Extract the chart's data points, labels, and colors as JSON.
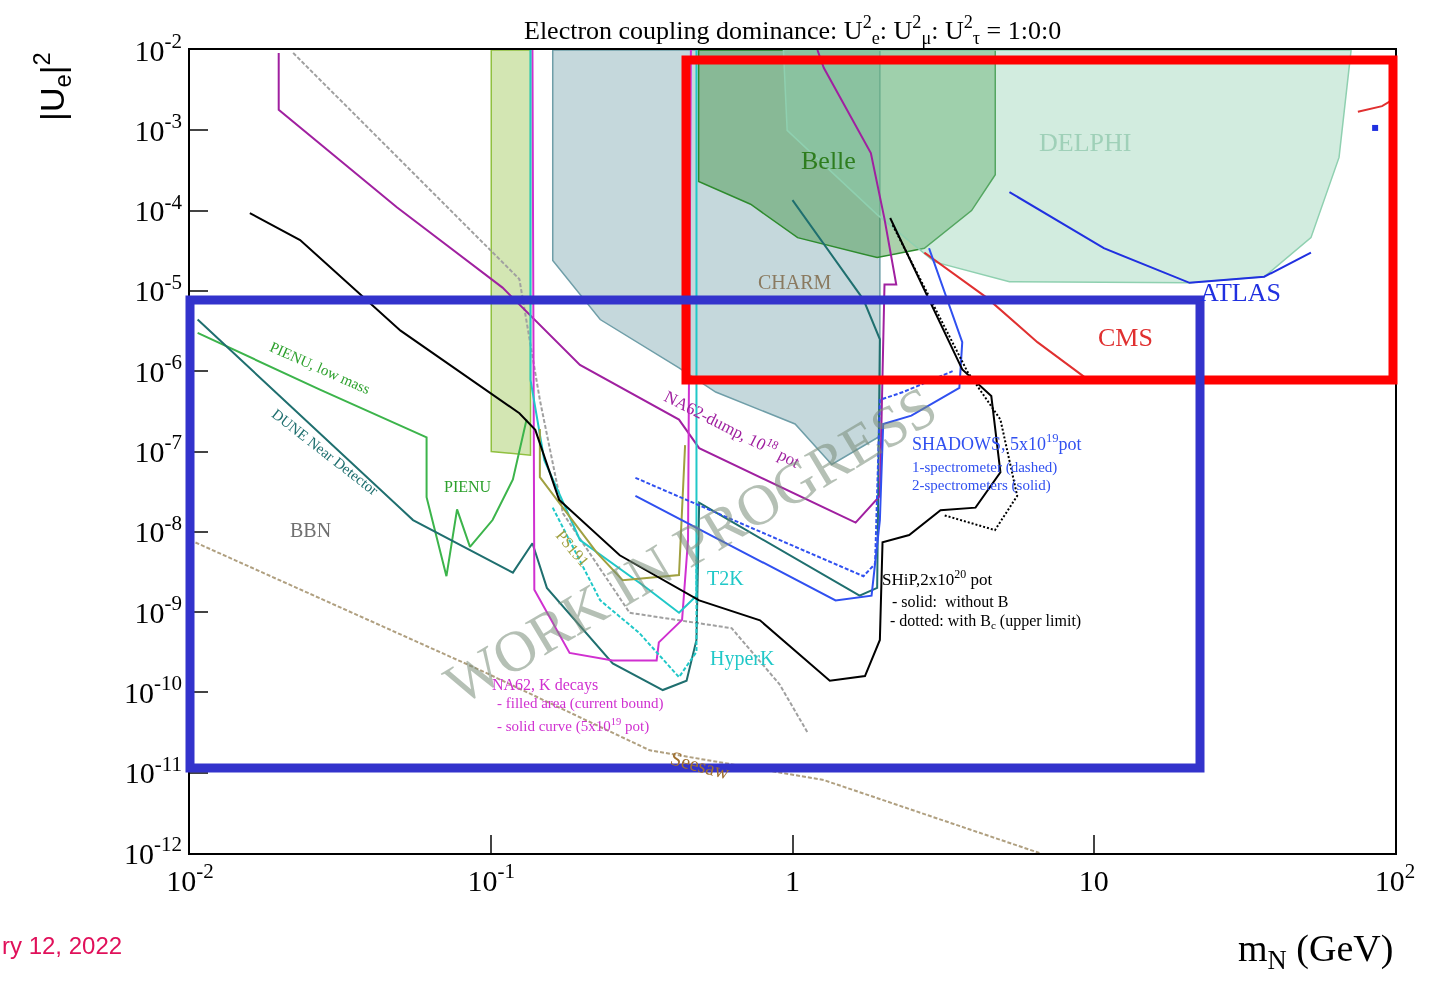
{
  "chart_data": {
    "type": "line",
    "title": "Electron coupling dominance: U$^{2}$$_{e}$: U$^{2}$$_{μ}$: U$^{2}$$_{τ}$ = 1:0:0",
    "xlabel": "m$_{N}$ (GeV)",
    "ylabel": "|U$_{e}$|$^{2}$",
    "log": "xy",
    "legend": false,
    "xlim": [
      0.01,
      100
    ],
    "ylim": [
      1e-12,
      0.01
    ],
    "xticks": [
      {
        "value": 0.01,
        "label": "10$^{-2}$"
      },
      {
        "value": 0.1,
        "label": "10$^{-1}$"
      },
      1,
      10,
      {
        "value": 100,
        "label": "10$^{2}$"
      }
    ],
    "yticks": [
      {
        "value": 1e-12,
        "label": "10$^{-12}$"
      },
      {
        "value": 1e-11,
        "label": "10$^{-11}$"
      },
      {
        "value": 1e-10,
        "label": "10$^{-10}$"
      },
      {
        "value": 1e-09,
        "label": "10$^{-9}$"
      },
      {
        "value": 1e-08,
        "label": "10$^{-8}$"
      },
      {
        "value": 1e-07,
        "label": "10$^{-7}$"
      },
      {
        "value": 1e-06,
        "label": "10$^{-6}$"
      },
      {
        "value": 1e-05,
        "label": "10$^{-5}$"
      },
      {
        "value": 0.0001,
        "label": "10$^{-4}$"
      },
      {
        "value": 0.001,
        "label": "10$^{-3}$"
      },
      {
        "value": 0.01,
        "label": "10$^{-2}$"
      }
    ],
    "series": [
      {
        "type": "area",
        "color": "#6f9ea8",
        "x": [
          0.16,
          0.16,
          0.23,
          0.42,
          0.556,
          1.02,
          1.35,
          1.95,
          1.95,
          0.16
        ],
        "values": [
          0.01,
          2.4e-05,
          4.4e-06,
          1.1e-06,
          5.5e-07,
          2.2e-07,
          6.9e-08,
          1.55e-07,
          0.01,
          0.01
        ]
      },
      {
        "type": "area",
        "color": "#90c040",
        "x": [
          0.1,
          0.1,
          0.135,
          0.135,
          0.1
        ],
        "values": [
          0.01,
          1e-07,
          9e-08,
          0.01,
          0.01
        ]
      },
      {
        "type": "area",
        "color": "#2e8b2e",
        "x": [
          0.488,
          0.488,
          0.726,
          1.04,
          1.91,
          2.74,
          3.93,
          4.71,
          4.71,
          0.488
        ],
        "values": [
          0.01,
          0.00023,
          0.00012,
          4.6e-05,
          2.6e-05,
          3.4e-05,
          0.0001,
          0.00028,
          0.01,
          0.01
        ]
      },
      {
        "type": "area",
        "color": "#8fd0b0",
        "x": [
          0.933,
          0.96,
          1.91,
          2.96,
          5.25,
          20.8,
          36.8,
          52.6,
          65.2,
          71.5,
          0.933
        ],
        "values": [
          0.01,
          0.001,
          8.9e-05,
          2.3e-05,
          1.3e-05,
          1.26e-05,
          1.5e-05,
          4.6e-05,
          0.00046,
          0.01,
          0.01
        ]
      },
      {
        "color": "#b0a080",
        "line_style": "dashed",
        "x": [
          0.01,
          0.0917,
          0.336,
          1.27,
          6.6
        ],
        "values": [
          7.9e-09,
          1.9e-10,
          1.9e-11,
          8.1e-12,
          1e-12
        ]
      },
      {
        "color": "#a0a0a0",
        "line_style": "dashed",
        "x": [
          0.022,
          0.124,
          0.145,
          0.173,
          0.288,
          0.628,
          0.906,
          1.12
        ],
        "values": [
          0.0092,
          1.4e-05,
          4.4e-07,
          1.7e-08,
          9.8e-10,
          6.3e-10,
          1.26e-10,
          3.2e-11
        ]
      },
      {
        "color": "#3cb44b",
        "x": [
          0.0106,
          0.027,
          0.061,
          0.061,
          0.071,
          0.077,
          0.085,
          0.101,
          0.118,
          0.131
        ],
        "values": [
          3e-06,
          5.9e-07,
          1.5e-07,
          2.7e-08,
          2.8e-09,
          1.9e-08,
          6.5e-09,
          1.4e-08,
          4.5e-08,
          2.5e-07
        ]
      },
      {
        "color": "#1f6f6f",
        "x": [
          0.0106,
          0.055,
          0.118,
          0.137,
          0.153,
          0.253,
          0.371,
          0.445,
          0.48,
          0.49,
          1.67,
          1.91,
          1.95,
          1.72,
          1.0
        ],
        "values": [
          4.4e-06,
          1.4e-08,
          3.1e-09,
          7.2e-09,
          2e-09,
          2.3e-10,
          1.07e-10,
          1.4e-10,
          4.5e-10,
          2.3e-08,
          1.6e-09,
          2e-09,
          2.5e-06,
          7.8e-06,
          0.000135
        ]
      },
      {
        "color": "#a020a0",
        "x": [
          0.0197,
          0.0197,
          0.0486,
          0.109,
          0.197,
          0.42,
          0.49,
          1.62,
          1.95,
          2.02,
          2.21,
          2.02,
          1.82,
          1.27,
          1.21
        ],
        "values": [
          0.0092,
          0.0018,
          0.00011,
          1.1e-05,
          1.2e-06,
          2.5e-07,
          1.1e-07,
          1.3e-08,
          2.8e-08,
          1.2e-05,
          1.2e-05,
          7.9e-05,
          0.00052,
          0.006,
          0.01
        ]
      },
      {
        "color": "#d030d0",
        "x": [
          0.137,
          0.139,
          0.182,
          0.253,
          0.354,
          0.36,
          0.43,
          0.45,
          0.46
        ],
        "values": [
          0.01,
          1.9e-09,
          3.1e-10,
          2.5e-10,
          2.5e-10,
          4.2e-10,
          8e-10,
          7.9e-09,
          0.01
        ]
      },
      {
        "color": "#20c8c8",
        "x": [
          0.135,
          0.135,
          0.15,
          0.197,
          0.328,
          0.42,
          0.48,
          0.48
        ],
        "values": [
          0.01,
          7.8e-07,
          7.8e-08,
          7.9e-09,
          2e-09,
          9.8e-10,
          1.6e-09,
          0.01
        ]
      },
      {
        "color": "#20c8c8",
        "line_style": "dashed",
        "x": [
          0.16,
          0.23,
          0.31,
          0.42,
          0.48,
          0.48
        ],
        "values": [
          2e-08,
          1.4e-09,
          5.5e-10,
          1.55e-10,
          3.2e-10,
          4.5e-09
        ]
      },
      {
        "color": "#a0a040",
        "x": [
          0.145,
          0.145,
          0.224,
          0.273,
          0.42,
          0.44
        ],
        "values": [
          1.9e-07,
          4.8e-08,
          5.5e-09,
          2.5e-09,
          2.9e-09,
          1.2e-07
        ]
      },
      {
        "color": "#e03030",
        "x": [
          2.74,
          4.4,
          6.5,
          9.3
        ],
        "values": [
          3e-05,
          8.3e-06,
          2.3e-06,
          8.5e-07
        ]
      },
      {
        "color": "#e03030",
        "x": [
          75.3,
          90.6,
          100
        ],
        "values": [
          0.0017,
          0.002,
          0.0025
        ]
      },
      {
        "color": "#2030e0",
        "x": [
          5.25,
          10.8,
          20.8,
          36.8,
          52.6
        ],
        "values": [
          0.00017,
          3.4e-05,
          1.26e-05,
          1.5e-05,
          3e-05
        ]
      },
      {
        "type": "scatter",
        "color": "#2030e0",
        "marker": "square",
        "x": [
          85.9
        ],
        "values": [
          0.00107
        ]
      },
      {
        "color": "#3050f0",
        "x": [
          0.301,
          1.39,
          1.83,
          1.95,
          2.0,
          2.48,
          3.58,
          3.66,
          2.84
        ],
        "values": [
          2.8e-08,
          1.4e-09,
          1.6e-09,
          1.4e-08,
          2.2e-07,
          2.8e-07,
          6.2e-07,
          2.3e-06,
          3.4e-05
        ]
      },
      {
        "color": "#3050f0",
        "line_style": "dashed",
        "x": [
          0.301,
          1.72,
          1.88,
          1.95,
          2.33,
          3.4
        ],
        "values": [
          4.7e-08,
          2.8e-09,
          4e-09,
          4.4e-07,
          5.5e-07,
          1e-06
        ]
      },
      {
        "color": "#000000",
        "x": [
          0.0158,
          0.0232,
          0.05,
          0.124,
          0.14,
          0.168,
          0.267,
          0.49,
          0.78,
          1.33,
          1.74,
          1.95,
          1.99,
          2.44,
          3.1,
          4.05,
          4.9,
          4.57,
          3.66,
          2.11
        ],
        "values": [
          9.3e-05,
          4.3e-05,
          3.2e-06,
          3e-07,
          1.86e-07,
          2.5e-08,
          5.1e-09,
          1.4e-09,
          7.9e-10,
          1.4e-10,
          1.6e-10,
          4.5e-10,
          7.4e-09,
          9.1e-09,
          1.86e-08,
          2e-08,
          5.5e-08,
          4.9e-07,
          1.05e-06,
          8.1e-05
        ]
      },
      {
        "color": "#000000",
        "line_style": "dotted",
        "x": [
          2.15,
          3.8,
          4.9,
          5.57,
          4.7,
          3.2
        ],
        "values": [
          6.6e-05,
          1e-06,
          2.5e-07,
          2.8e-08,
          1.05e-08,
          1.6e-08
        ]
      }
    ],
    "annotations": [
      "Belle",
      "DELPHI",
      "CHARM",
      "ATLAS",
      "CMS",
      "PIENU, low mass",
      "DUNE Near Detector",
      "BBN",
      "PIENU",
      "PS191",
      "T2K",
      "HyperK",
      "NA62-dump, 10$^{18}$ pot",
      "SHADOWS, 5x10$^{19}$pot",
      "1-spectrometer (dashed)",
      "2-spectrometers (solid)",
      "SHiP,2x10$^{20}$ pot",
      "- solid:  without B",
      "- dotted: with B$_{c}$ (upper limit)",
      "NA62, K decays",
      "- filled area (current bound)",
      "- solid curve (5x10$^{19}$ pot)",
      "Seesaw",
      "WORK IN PROGRESS",
      "ry 12, 2022"
    ]
  }
}
